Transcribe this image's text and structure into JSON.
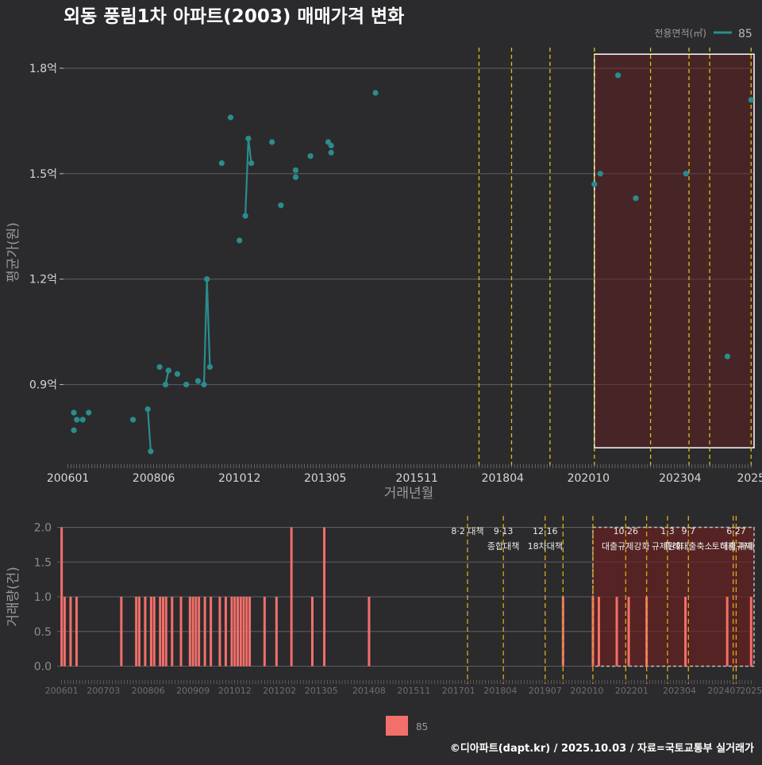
{
  "title": "외동 풍림1차 아파트(2003) 매매가격 변화",
  "legend_top": {
    "title": "전용면적(㎡)",
    "label": "85"
  },
  "legend_bottom": {
    "label": "85"
  },
  "footer": "©디아파트(dapt.kr) / 2025.10.03 / 자료=국토교통부 실거래가",
  "colors": {
    "bg": "#2b2b2d",
    "line": "#2a8d8d",
    "bar": "#f26f6a",
    "policy": "#d8c21a",
    "policy2": "#e0a81e",
    "highlight": "#6b1f1f"
  },
  "chart_data": [
    {
      "type": "line",
      "title": "외동 풍림1차 아파트(2003) 매매가격 변화",
      "xlabel": "거래년월",
      "ylabel": "평균가(원)",
      "x_unit": "months since 2006-01",
      "xlim": [
        -1.5,
        232
      ],
      "ylim": [
        0.68,
        1.87
      ],
      "x_ticks": [
        0,
        29,
        58,
        87,
        118,
        147,
        176,
        207,
        231
      ],
      "x_tick_labels": [
        "200601",
        "200806",
        "201012",
        "201305",
        "201511",
        "201804",
        "202010",
        "202304",
        "2025"
      ],
      "y_ticks": [
        0.9,
        1.2,
        1.5,
        1.8
      ],
      "y_tick_labels": [
        "0.9억",
        "1.2억",
        "1.5억",
        "1.8억"
      ],
      "policy_lines": [
        139,
        150,
        163,
        178,
        197,
        210,
        217,
        231,
        234
      ],
      "highlight": {
        "x0": 178,
        "x1": 232,
        "y0": 0.72,
        "y1": 1.84
      },
      "series": [
        {
          "name": "85",
          "points": [
            [
              2,
              0.82
            ],
            [
              2,
              0.77
            ],
            [
              3,
              0.8
            ],
            [
              5,
              0.8
            ],
            [
              7,
              0.82
            ],
            [
              22,
              0.8
            ],
            [
              27,
              0.83
            ],
            [
              28,
              0.71
            ],
            [
              31,
              0.95
            ],
            [
              33,
              0.9
            ],
            [
              34,
              0.94
            ],
            [
              37,
              0.93
            ],
            [
              40,
              0.9
            ],
            [
              44,
              0.91
            ],
            [
              46,
              0.9
            ],
            [
              47,
              1.2
            ],
            [
              48,
              0.95
            ],
            [
              52,
              1.53
            ],
            [
              55,
              1.66
            ],
            [
              58,
              1.31
            ],
            [
              60,
              1.38
            ],
            [
              61,
              1.6
            ],
            [
              62,
              1.53
            ],
            [
              69,
              1.59
            ],
            [
              72,
              1.41
            ],
            [
              77,
              1.49
            ],
            [
              77,
              1.51
            ],
            [
              82,
              1.55
            ],
            [
              88,
              1.59
            ],
            [
              89,
              1.56
            ],
            [
              89,
              1.58
            ],
            [
              104,
              1.73
            ],
            [
              178,
              1.47
            ],
            [
              180,
              1.5
            ],
            [
              186,
              1.78
            ],
            [
              192,
              1.43
            ],
            [
              209,
              1.5
            ],
            [
              223,
              0.98
            ],
            [
              231,
              1.71
            ]
          ],
          "lines": [
            [
              [
                27,
                0.83
              ],
              [
                28,
                0.71
              ]
            ],
            [
              [
                33,
                0.9
              ],
              [
                34,
                0.94
              ]
            ],
            [
              [
                46,
                0.9
              ],
              [
                47,
                1.2
              ],
              [
                48,
                0.95
              ]
            ],
            [
              [
                60,
                1.38
              ],
              [
                61,
                1.6
              ],
              [
                62,
                1.53
              ]
            ]
          ]
        }
      ]
    },
    {
      "type": "bar",
      "xlabel": "",
      "ylabel": "거래량(건)",
      "x_unit": "months since 2006-01",
      "xlim": [
        -1.5,
        232
      ],
      "ylim": [
        -0.2,
        2.2
      ],
      "y_ticks": [
        0,
        0.5,
        1,
        1.5,
        2
      ],
      "y_tick_labels": [
        "0.0",
        "0.5",
        "1.0",
        "1.5",
        "2.0"
      ],
      "x_ticks": [
        0,
        14,
        29,
        44,
        58,
        73,
        87,
        103,
        118,
        133,
        147,
        162,
        176,
        191,
        207,
        222,
        231
      ],
      "x_tick_labels": [
        "200601",
        "200703",
        "200806",
        "200909",
        "201012",
        "201202",
        "201305",
        "201408",
        "201511",
        "201701",
        "201804",
        "201907",
        "202010",
        "202201",
        "202304",
        "202407",
        "2025"
      ],
      "highlight": {
        "x0": 178,
        "x1": 232,
        "y0": 0,
        "y1": 2
      },
      "policy_lines": [
        {
          "x": 136,
          "label1": "8·2 대책",
          "label2": ""
        },
        {
          "x": 148,
          "label1": "9·13",
          "label2": "종합대책"
        },
        {
          "x": 162,
          "label1": "12·16",
          "label2": "18차대책"
        },
        {
          "x": 168,
          "label1": "",
          "label2": ""
        },
        {
          "x": 178,
          "label1": "",
          "label2": ""
        },
        {
          "x": 189,
          "label1": "10·26",
          "label2": "대출규제강화"
        },
        {
          "x": 196,
          "label1": "",
          "label2": ""
        },
        {
          "x": 203,
          "label1": "1·3",
          "label2": "규제완화"
        },
        {
          "x": 210,
          "label1": "9·7",
          "label2": "특례대출축소"
        },
        {
          "x": 225,
          "label1": "",
          "label2": "토허제 해제"
        },
        {
          "x": 226,
          "label1": "6·27",
          "label2": "대출규제"
        }
      ],
      "series": [
        {
          "name": "85",
          "x": [
            0,
            1,
            3,
            5,
            20,
            25,
            26,
            28,
            30,
            31,
            33,
            34,
            35,
            37,
            40,
            43,
            44,
            45,
            46,
            48,
            50,
            53,
            55,
            57,
            58,
            59,
            60,
            61,
            62,
            63,
            68,
            72,
            77,
            84,
            88,
            103,
            168,
            178,
            180,
            186,
            190,
            196,
            209,
            223,
            231
          ],
          "values": [
            2,
            1,
            1,
            1,
            1,
            1,
            1,
            1,
            1,
            1,
            1,
            1,
            1,
            1,
            1,
            1,
            1,
            1,
            1,
            1,
            1,
            1,
            1,
            1,
            1,
            1,
            1,
            1,
            1,
            1,
            1,
            1,
            2,
            1,
            2,
            1,
            1,
            1,
            1,
            1,
            1,
            1,
            1,
            1,
            1
          ]
        }
      ]
    }
  ]
}
